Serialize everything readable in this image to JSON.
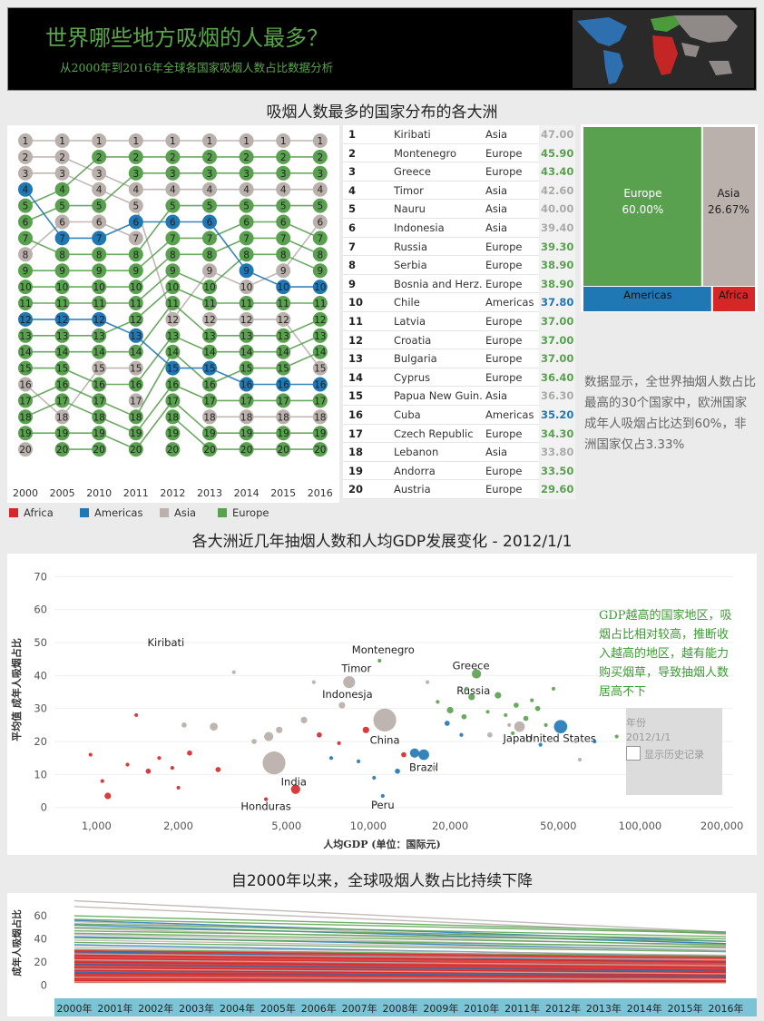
{
  "header": {
    "title": "世界哪些地方吸烟的人最多？",
    "subtitle": "从2000年到2016年全球各国家吸烟人数占比数据分析"
  },
  "sections": {
    "continents_title": "吸烟人数最多的国家分布的各大洲",
    "scatter_title": "各大洲近几年抽烟人数和人均GDP发展变化 - 2012/1/1",
    "trend_title": "自2000年以来，全球吸烟人数占比持续下降"
  },
  "colors": {
    "Africa": "#d62728",
    "Americas": "#1f77b4",
    "Asia": "#bab0ac",
    "Europe": "#59a14f"
  },
  "legend": [
    {
      "label": "Africa",
      "color": "#d62728"
    },
    {
      "label": "Americas",
      "color": "#1f77b4"
    },
    {
      "label": "Asia",
      "color": "#bab0ac"
    },
    {
      "label": "Europe",
      "color": "#59a14f"
    }
  ],
  "notes": {
    "treemap_note": "数据显示，全世界抽烟人数占比最高的30个国家中，欧洲国家成年人吸烟占比达到60%，非洲国家仅占3.33%",
    "scatter_note": "GDP越高的国家地区，吸烟占比相对较高，推断收入越高的地区，越有能力购买烟草，导致抽烟人数居高不下"
  },
  "year_filter": {
    "label": "年份",
    "value": "2012/1/1",
    "history_label": "显示历史记录"
  },
  "chart_data": [
    {
      "type": "bump",
      "x": [
        "2000",
        "2005",
        "2010",
        "2011",
        "2012",
        "2013",
        "2014",
        "2015",
        "2016"
      ],
      "ranks": [
        1,
        2,
        3,
        4,
        5,
        6,
        7,
        8,
        9,
        10,
        11,
        12,
        13,
        14,
        15,
        16,
        17,
        18,
        19,
        20
      ],
      "continent_by_rank": [
        [
          "Asia",
          "Asia",
          "Asia",
          "Americas",
          "Europe",
          "Europe",
          "Europe",
          "Asia",
          "Europe",
          "Europe",
          "Europe",
          "Americas",
          "Europe",
          "Europe",
          "Europe",
          "Asia",
          "Europe",
          "Europe",
          "Europe",
          "Asia"
        ],
        [
          "Asia",
          "Asia",
          "Asia",
          "Europe",
          "Europe",
          "Asia",
          "Americas",
          "Europe",
          "Europe",
          "Europe",
          "Europe",
          "Americas",
          "Europe",
          "Europe",
          "Europe",
          "Europe",
          "Europe",
          "Asia",
          "Europe",
          "Europe"
        ],
        [
          "Asia",
          "Europe",
          "Asia",
          "Asia",
          "Europe",
          "Asia",
          "Americas",
          "Europe",
          "Europe",
          "Europe",
          "Europe",
          "Americas",
          "Europe",
          "Europe",
          "Asia",
          "Europe",
          "Europe",
          "Europe",
          "Europe",
          "Europe"
        ],
        [
          "Asia",
          "Europe",
          "Europe",
          "Asia",
          "Asia",
          "Americas",
          "Asia",
          "Europe",
          "Europe",
          "Europe",
          "Europe",
          "Europe",
          "Americas",
          "Europe",
          "Asia",
          "Europe",
          "Asia",
          "Europe",
          "Europe",
          "Europe"
        ],
        [
          "Asia",
          "Europe",
          "Europe",
          "Asia",
          "Europe",
          "Americas",
          "Europe",
          "Europe",
          "Europe",
          "Europe",
          "Europe",
          "Asia",
          "Europe",
          "Europe",
          "Americas",
          "Europe",
          "Europe",
          "Europe",
          "Europe",
          "Europe"
        ],
        [
          "Asia",
          "Europe",
          "Europe",
          "Asia",
          "Europe",
          "Americas",
          "Europe",
          "Europe",
          "Asia",
          "Europe",
          "Europe",
          "Asia",
          "Europe",
          "Europe",
          "Americas",
          "Europe",
          "Europe",
          "Asia",
          "Europe",
          "Europe"
        ],
        [
          "Asia",
          "Europe",
          "Europe",
          "Asia",
          "Europe",
          "Europe",
          "Europe",
          "Europe",
          "Americas",
          "Asia",
          "Europe",
          "Asia",
          "Europe",
          "Europe",
          "Europe",
          "Americas",
          "Europe",
          "Asia",
          "Europe",
          "Europe"
        ],
        [
          "Asia",
          "Europe",
          "Europe",
          "Asia",
          "Europe",
          "Europe",
          "Europe",
          "Europe",
          "Asia",
          "Americas",
          "Europe",
          "Asia",
          "Europe",
          "Europe",
          "Europe",
          "Americas",
          "Europe",
          "Asia",
          "Europe",
          "Europe"
        ],
        [
          "Asia",
          "Europe",
          "Europe",
          "Asia",
          "Europe",
          "Asia",
          "Europe",
          "Europe",
          "Europe",
          "Americas",
          "Europe",
          "Europe",
          "Europe",
          "Europe",
          "Asia",
          "Americas",
          "Europe",
          "Asia",
          "Europe",
          "Europe"
        ]
      ]
    },
    {
      "type": "table",
      "columns": [
        "rank",
        "country",
        "continent",
        "value"
      ],
      "rows": [
        [
          1,
          "Kiribati",
          "Asia",
          47.0
        ],
        [
          2,
          "Montenegro",
          "Europe",
          45.9
        ],
        [
          3,
          "Greece",
          "Europe",
          43.4
        ],
        [
          4,
          "Timor",
          "Asia",
          42.6
        ],
        [
          5,
          "Nauru",
          "Asia",
          40.0
        ],
        [
          6,
          "Indonesia",
          "Asia",
          39.4
        ],
        [
          7,
          "Russia",
          "Europe",
          39.3
        ],
        [
          8,
          "Serbia",
          "Europe",
          38.9
        ],
        [
          9,
          "Bosnia and Herz..",
          "Europe",
          38.9
        ],
        [
          10,
          "Chile",
          "Americas",
          37.8
        ],
        [
          11,
          "Latvia",
          "Europe",
          37.0
        ],
        [
          12,
          "Croatia",
          "Europe",
          37.0
        ],
        [
          13,
          "Bulgaria",
          "Europe",
          37.0
        ],
        [
          14,
          "Cyprus",
          "Europe",
          36.4
        ],
        [
          15,
          "Papua New Guin..",
          "Asia",
          36.3
        ],
        [
          16,
          "Cuba",
          "Americas",
          35.2
        ],
        [
          17,
          "Czech Republic",
          "Europe",
          34.3
        ],
        [
          18,
          "Lebanon",
          "Asia",
          33.8
        ],
        [
          19,
          "Andorra",
          "Europe",
          33.5
        ],
        [
          20,
          "Austria",
          "Europe",
          29.6
        ]
      ]
    },
    {
      "type": "treemap",
      "items": [
        {
          "label": "Europe",
          "value_text": "60.00%",
          "value": 60.0
        },
        {
          "label": "Asia",
          "value_text": "26.67%",
          "value": 26.67
        },
        {
          "label": "Americas",
          "value": 10.0
        },
        {
          "label": "Africa",
          "value": 3.33
        }
      ]
    },
    {
      "type": "scatter",
      "xlabel": "人均GDP (单位：国际元)",
      "ylabel": "平均值 成年人吸烟占比",
      "xscale": "log",
      "xlim": [
        700,
        220000
      ],
      "ylim": [
        -2,
        72
      ],
      "xticks": [
        1000,
        2000,
        5000,
        10000,
        20000,
        50000,
        100000,
        200000
      ],
      "xtick_labels": [
        "1,000",
        "2,000",
        "5,000",
        "10,000",
        "20,000",
        "50,000",
        "100,000",
        "200,000"
      ],
      "yticks": [
        0,
        10,
        20,
        30,
        40,
        50,
        60,
        70
      ],
      "points": [
        {
          "x": 1800,
          "y": 50,
          "c": "Asia",
          "s": 1,
          "label": "Kiribati"
        },
        {
          "x": 11000,
          "y": 44.5,
          "c": "Europe",
          "s": 2,
          "label": "Montenegro"
        },
        {
          "x": 25000,
          "y": 40.5,
          "c": "Europe",
          "s": 6,
          "label": "Greece"
        },
        {
          "x": 8500,
          "y": 38,
          "c": "Asia",
          "s": 8,
          "label": "Timor"
        },
        {
          "x": 24000,
          "y": 33.5,
          "c": "Europe",
          "s": 4,
          "label": "Russia"
        },
        {
          "x": 8000,
          "y": 31,
          "c": "Asia",
          "s": 4,
          "label": "Indonesja"
        },
        {
          "x": 11500,
          "y": 26.5,
          "c": "Asia",
          "s": 16,
          "label": "China"
        },
        {
          "x": 36000,
          "y": 24.5,
          "c": "Asia",
          "s": 7,
          "label": "Japan"
        },
        {
          "x": 51000,
          "y": 24.5,
          "c": "Americas",
          "s": 9,
          "label": "United States"
        },
        {
          "x": 16000,
          "y": 16,
          "c": "Americas",
          "s": 7,
          "label": "Brazil"
        },
        {
          "x": 4500,
          "y": 13.5,
          "c": "Asia",
          "s": 16
        },
        {
          "x": 5400,
          "y": 5.5,
          "c": "Africa",
          "s": 6,
          "label": "India"
        },
        {
          "x": 4200,
          "y": 2.5,
          "c": "Africa",
          "s": 2,
          "label": "Honduras"
        },
        {
          "x": 11300,
          "y": 3.5,
          "c": "Americas",
          "s": 2,
          "label": "Peru"
        },
        {
          "x": 1100,
          "y": 3.5,
          "c": "Africa",
          "s": 4
        },
        {
          "x": 1050,
          "y": 8,
          "c": "Africa",
          "s": 2
        },
        {
          "x": 950,
          "y": 16,
          "c": "Africa",
          "s": 2
        },
        {
          "x": 1300,
          "y": 13,
          "c": "Africa",
          "s": 2
        },
        {
          "x": 1550,
          "y": 11,
          "c": "Africa",
          "s": 3
        },
        {
          "x": 1700,
          "y": 15,
          "c": "Africa",
          "s": 2
        },
        {
          "x": 1900,
          "y": 12,
          "c": "Africa",
          "s": 2
        },
        {
          "x": 2200,
          "y": 16.5,
          "c": "Africa",
          "s": 3
        },
        {
          "x": 2800,
          "y": 11.5,
          "c": "Africa",
          "s": 3
        },
        {
          "x": 2000,
          "y": 6,
          "c": "Africa",
          "s": 2
        },
        {
          "x": 1400,
          "y": 28,
          "c": "Africa",
          "s": 2
        },
        {
          "x": 2100,
          "y": 25,
          "c": "Asia",
          "s": 3
        },
        {
          "x": 2700,
          "y": 24.5,
          "c": "Asia",
          "s": 5
        },
        {
          "x": 3200,
          "y": 41,
          "c": "Asia",
          "s": 2
        },
        {
          "x": 3800,
          "y": 20,
          "c": "Asia",
          "s": 3
        },
        {
          "x": 4300,
          "y": 21.5,
          "c": "Asia",
          "s": 6
        },
        {
          "x": 4700,
          "y": 23.5,
          "c": "Asia",
          "s": 4
        },
        {
          "x": 5800,
          "y": 26.5,
          "c": "Asia",
          "s": 4
        },
        {
          "x": 6600,
          "y": 22,
          "c": "Africa",
          "s": 3
        },
        {
          "x": 7800,
          "y": 19.5,
          "c": "Africa",
          "s": 2
        },
        {
          "x": 9800,
          "y": 23.5,
          "c": "Africa",
          "s": 4
        },
        {
          "x": 13500,
          "y": 16,
          "c": "Africa",
          "s": 3
        },
        {
          "x": 12800,
          "y": 11,
          "c": "Americas",
          "s": 3
        },
        {
          "x": 14800,
          "y": 16.5,
          "c": "Americas",
          "s": 6
        },
        {
          "x": 17500,
          "y": 12,
          "c": "Asia",
          "s": 3
        },
        {
          "x": 19500,
          "y": 25.5,
          "c": "Americas",
          "s": 3
        },
        {
          "x": 22000,
          "y": 22,
          "c": "Americas",
          "s": 2
        },
        {
          "x": 9200,
          "y": 14,
          "c": "Americas",
          "s": 2
        },
        {
          "x": 10500,
          "y": 9,
          "c": "Americas",
          "s": 2
        },
        {
          "x": 7300,
          "y": 15,
          "c": "Americas",
          "s": 2
        },
        {
          "x": 18000,
          "y": 32,
          "c": "Europe",
          "s": 2
        },
        {
          "x": 20000,
          "y": 29.5,
          "c": "Europe",
          "s": 4
        },
        {
          "x": 22500,
          "y": 27.5,
          "c": "Europe",
          "s": 3
        },
        {
          "x": 27500,
          "y": 29,
          "c": "Europe",
          "s": 2
        },
        {
          "x": 30000,
          "y": 34,
          "c": "Europe",
          "s": 4
        },
        {
          "x": 32000,
          "y": 28,
          "c": "Europe",
          "s": 2
        },
        {
          "x": 35000,
          "y": 31,
          "c": "Europe",
          "s": 3
        },
        {
          "x": 38000,
          "y": 27,
          "c": "Europe",
          "s": 3
        },
        {
          "x": 40000,
          "y": 32.5,
          "c": "Europe",
          "s": 2
        },
        {
          "x": 42000,
          "y": 30,
          "c": "Europe",
          "s": 3
        },
        {
          "x": 45000,
          "y": 25,
          "c": "Europe",
          "s": 2
        },
        {
          "x": 34000,
          "y": 22.5,
          "c": "Europe",
          "s": 2
        },
        {
          "x": 28000,
          "y": 22,
          "c": "Asia",
          "s": 3
        },
        {
          "x": 33000,
          "y": 25,
          "c": "Asia",
          "s": 2
        },
        {
          "x": 58000,
          "y": 20,
          "c": "Asia",
          "s": 2
        },
        {
          "x": 43000,
          "y": 19,
          "c": "Americas",
          "s": 2
        },
        {
          "x": 60000,
          "y": 14.5,
          "c": "Asia",
          "s": 2
        },
        {
          "x": 48000,
          "y": 36,
          "c": "Europe",
          "s": 2
        },
        {
          "x": 68000,
          "y": 20,
          "c": "Americas",
          "s": 2
        },
        {
          "x": 82000,
          "y": 21.5,
          "c": "Europe",
          "s": 2
        },
        {
          "x": 6300,
          "y": 38,
          "c": "Asia",
          "s": 2
        },
        {
          "x": 16500,
          "y": 38,
          "c": "Asia",
          "s": 2
        },
        {
          "x": 23000,
          "y": 36,
          "c": "Europe",
          "s": 2
        }
      ]
    },
    {
      "type": "line",
      "ylabel": "成年人吸烟占比",
      "x": [
        "2000年",
        "2001年",
        "2002年",
        "2003年",
        "2004年",
        "2005年",
        "2006年",
        "2007年",
        "2008年",
        "2009年",
        "2010年",
        "2011年",
        "2012年",
        "2013年",
        "2014年",
        "2015年",
        "2016年"
      ],
      "yticks": [
        0,
        20,
        40,
        60
      ],
      "ylim": [
        -5,
        75
      ],
      "series": [
        {
          "c": "Asia",
          "start": 73,
          "end": 46
        },
        {
          "c": "Asia",
          "start": 68,
          "end": 44
        },
        {
          "c": "Europe",
          "start": 60,
          "end": 46
        },
        {
          "c": "Europe",
          "start": 57,
          "end": 45
        },
        {
          "c": "Americas",
          "start": 56,
          "end": 38
        },
        {
          "c": "Asia",
          "start": 55,
          "end": 36
        },
        {
          "c": "Europe",
          "start": 53,
          "end": 42
        },
        {
          "c": "Americas",
          "start": 52,
          "end": 36
        },
        {
          "c": "Europe",
          "start": 50,
          "end": 40
        },
        {
          "c": "Asia",
          "start": 49,
          "end": 34
        },
        {
          "c": "Europe",
          "start": 47,
          "end": 38
        },
        {
          "c": "Europe",
          "start": 45,
          "end": 35
        },
        {
          "c": "Asia",
          "start": 44,
          "end": 32
        },
        {
          "c": "Americas",
          "start": 42,
          "end": 30
        },
        {
          "c": "Europe",
          "start": 41,
          "end": 33
        },
        {
          "c": "Asia",
          "start": 39,
          "end": 30
        },
        {
          "c": "Europe",
          "start": 37,
          "end": 29
        },
        {
          "c": "Americas",
          "start": 35,
          "end": 25
        },
        {
          "c": "Asia",
          "start": 33,
          "end": 26
        },
        {
          "c": "Europe",
          "start": 31,
          "end": 25
        },
        {
          "c": "Americas",
          "start": 29,
          "end": 20
        },
        {
          "c": "Asia",
          "start": 27,
          "end": 22
        },
        {
          "c": "Africa",
          "start": 30,
          "end": 24
        },
        {
          "c": "Africa",
          "start": 26,
          "end": 20
        },
        {
          "c": "Africa",
          "start": 23,
          "end": 17
        },
        {
          "c": "Africa",
          "start": 20,
          "end": 15
        },
        {
          "c": "Africa",
          "start": 18,
          "end": 13
        },
        {
          "c": "Africa",
          "start": 15,
          "end": 11
        },
        {
          "c": "Africa",
          "start": 13,
          "end": 9
        },
        {
          "c": "Africa",
          "start": 10,
          "end": 7
        },
        {
          "c": "Africa",
          "start": 8,
          "end": 5
        },
        {
          "c": "Africa",
          "start": 6,
          "end": 4
        },
        {
          "c": "Africa",
          "start": 4,
          "end": 3
        },
        {
          "c": "Asia",
          "start": 22,
          "end": 17
        },
        {
          "c": "Americas",
          "start": 18,
          "end": 12
        },
        {
          "c": "Asia",
          "start": 14,
          "end": 10
        },
        {
          "c": "Americas",
          "start": 11,
          "end": 8
        },
        {
          "c": "Asia",
          "start": 7,
          "end": 5
        },
        {
          "c": "Asia",
          "start": 3,
          "end": 2
        }
      ]
    }
  ]
}
